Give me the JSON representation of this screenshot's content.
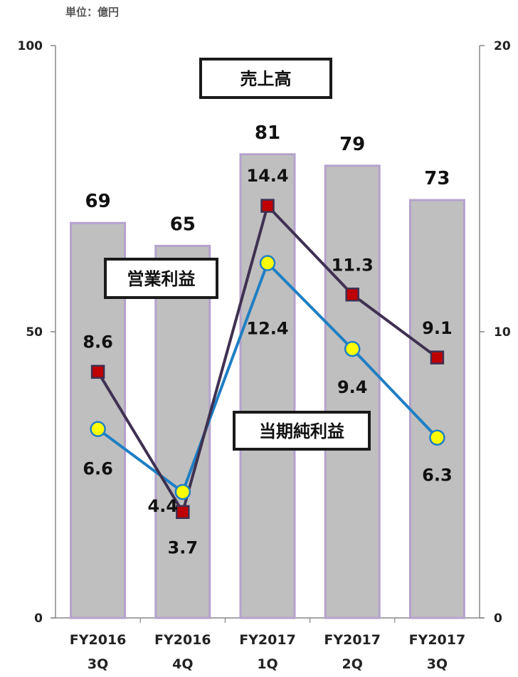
{
  "unit_label": "単位：億円",
  "chart_data": {
    "type": "bar",
    "categories": [
      [
        "FY2016",
        "3Q"
      ],
      [
        "FY2016",
        "4Q"
      ],
      [
        "FY2017",
        "1Q"
      ],
      [
        "FY2017",
        "2Q"
      ],
      [
        "FY2017",
        "3Q"
      ]
    ],
    "left_axis": {
      "ylim": [
        0,
        100
      ],
      "ticks": [
        "0",
        "50",
        "100"
      ]
    },
    "right_axis": {
      "ylim": [
        0,
        20
      ],
      "ticks": [
        "0",
        "10",
        "20"
      ]
    },
    "series": [
      {
        "name": "売上高",
        "type": "bar",
        "axis": "left",
        "values": [
          69,
          65,
          81,
          79,
          73
        ],
        "labels": [
          "69",
          "65",
          "81",
          "79",
          "73"
        ],
        "color": "#bfbfbf",
        "border": "#b4a2cc"
      },
      {
        "name": "営業利益",
        "type": "line",
        "axis": "right",
        "values": [
          8.6,
          3.7,
          14.4,
          11.3,
          9.1
        ],
        "labels": [
          "8.6",
          "3.7",
          "14.4",
          "11.3",
          "9.1"
        ],
        "color": "#3f3151",
        "marker": "square",
        "marker_color": "#c00000"
      },
      {
        "name": "当期純利益",
        "type": "line",
        "axis": "right",
        "values": [
          6.6,
          4.4,
          12.4,
          9.4,
          6.3
        ],
        "labels": [
          "6.6",
          "4.4",
          "12.4",
          "9.4",
          "6.3"
        ],
        "color": "#1f7fc4",
        "marker": "circle",
        "marker_color": "#ffff00"
      }
    ],
    "grid": false,
    "legend": "none"
  }
}
